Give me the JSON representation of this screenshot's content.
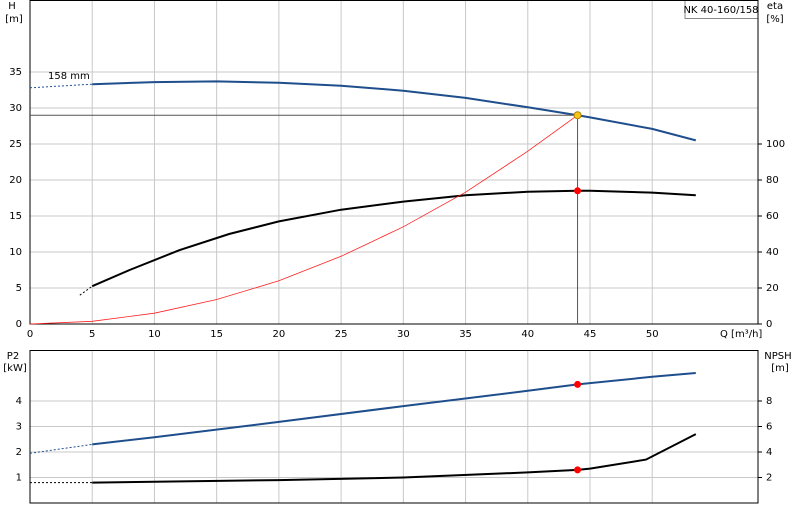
{
  "chart_data": [
    {
      "type": "line",
      "title": "NK 40-160/158",
      "ylabel": "H",
      "yunit": "[m]",
      "y2label": "eta",
      "y2unit": "[%]",
      "xlabel": "Q [m³/h]",
      "xlim": [
        0,
        58.5
      ],
      "xticks": [
        0,
        5,
        10,
        15,
        20,
        25,
        30,
        35,
        40,
        45,
        50
      ],
      "xtick_labels": true,
      "ylim": [
        0,
        45
      ],
      "yticks": [
        0,
        5,
        10,
        15,
        20,
        25,
        30,
        35
      ],
      "y2lim": [
        0,
        180
      ],
      "y2ticks": [
        0,
        20,
        40,
        60,
        80,
        100
      ],
      "grid": true,
      "series": [
        {
          "name": "158 mm",
          "color": "#1f4e8c",
          "style": "solid",
          "width": 2,
          "axis": "y",
          "x": [
            5,
            10,
            15,
            20,
            25,
            30,
            35,
            40,
            44,
            45,
            50,
            53.5
          ],
          "values": [
            33.3,
            33.6,
            33.7,
            33.5,
            33.1,
            32.4,
            31.4,
            30.1,
            29,
            28.7,
            27.1,
            25.5
          ]
        },
        {
          "color": "#1f4e8c",
          "style": "dashed",
          "width": 1,
          "axis": "y",
          "x": [
            0,
            5
          ],
          "values": [
            32.8,
            33.3
          ]
        },
        {
          "color": "#000000",
          "style": "solid",
          "width": 2,
          "axis": "y2",
          "x": [
            5,
            8,
            12,
            16,
            20,
            25,
            30,
            35,
            40,
            44,
            45,
            50,
            53.5
          ],
          "values": [
            21,
            30,
            41,
            50,
            57,
            63.5,
            68,
            71.5,
            73.5,
            74,
            74,
            73,
            71.5
          ]
        },
        {
          "color": "#000000",
          "style": "dashed",
          "width": 1,
          "axis": "y2",
          "x": [
            4,
            5
          ],
          "values": [
            16,
            21
          ]
        },
        {
          "color": "#ff2020",
          "style": "solid",
          "width": 0.8,
          "axis": "y",
          "x": [
            0,
            5,
            10,
            15,
            20,
            25,
            30,
            35,
            40,
            44
          ],
          "values": [
            0,
            0.37,
            1.5,
            3.4,
            6,
            9.4,
            13.5,
            18.3,
            24,
            29
          ]
        }
      ],
      "points": [
        {
          "x": 44,
          "value": 29,
          "axis": "y",
          "color": "#f5c518",
          "guides": true
        },
        {
          "x": 44,
          "value": 74,
          "axis": "y2",
          "color": "#ff0000",
          "guides": false
        }
      ]
    },
    {
      "type": "line",
      "ylabel": "P2",
      "yunit": "[kW]",
      "y2label": "NPSH",
      "y2unit": "[m]",
      "xlim": [
        0,
        58.5
      ],
      "xticks": [
        0,
        5,
        10,
        15,
        20,
        25,
        30,
        35,
        40,
        45,
        50
      ],
      "xtick_labels": false,
      "ylim": [
        0,
        6
      ],
      "yticks": [
        1,
        2,
        3,
        4
      ],
      "y2lim": [
        0,
        12
      ],
      "y2ticks": [
        2,
        4,
        6,
        8
      ],
      "grid": true,
      "series": [
        {
          "color": "#1f4e8c",
          "style": "solid",
          "width": 2,
          "axis": "y",
          "x": [
            5,
            10,
            20,
            30,
            40,
            44,
            50,
            53.5
          ],
          "values": [
            2.3,
            2.58,
            3.18,
            3.8,
            4.4,
            4.65,
            4.95,
            5.1
          ]
        },
        {
          "color": "#1f4e8c",
          "style": "dashed",
          "width": 1,
          "axis": "y",
          "x": [
            0,
            5
          ],
          "values": [
            1.95,
            2.3
          ]
        },
        {
          "color": "#000000",
          "style": "solid",
          "width": 2,
          "axis": "y2",
          "x": [
            5,
            20,
            30,
            40,
            44,
            45,
            49.5,
            53.5
          ],
          "values": [
            1.6,
            1.8,
            2.0,
            2.4,
            2.6,
            2.7,
            3.4,
            5.4
          ]
        },
        {
          "color": "#000000",
          "style": "dashed",
          "width": 1,
          "axis": "y2",
          "x": [
            0,
            5
          ],
          "values": [
            1.6,
            1.6
          ]
        }
      ],
      "points": [
        {
          "x": 44,
          "value": 4.65,
          "axis": "y",
          "color": "#ff0000",
          "guides": false
        },
        {
          "x": 44,
          "value": 2.6,
          "axis": "y2",
          "color": "#ff0000",
          "guides": false
        }
      ]
    }
  ]
}
